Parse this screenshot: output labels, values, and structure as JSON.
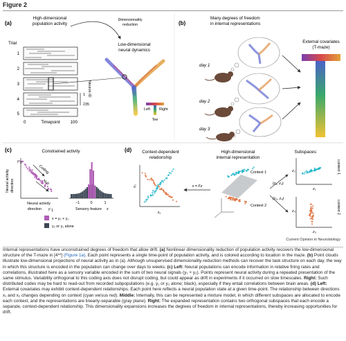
{
  "figure_label": "Figure 2",
  "panel_a": {
    "letter": "(a)",
    "title_line1": "High-dimensional",
    "title_line2": "population activity",
    "trial_label": "Trial",
    "trial_numbers": [
      "1",
      "2",
      "3",
      "4",
      "5"
    ],
    "x_axis_label": "Timepoint",
    "x_tick_0": "0",
    "x_tick_100": "100",
    "neuron_label": "Neuron ID",
    "neuron_tick_1": "1",
    "neuron_tick_235": "235",
    "arrow_label_line1": "Dimensionality",
    "arrow_label_line2": "reduction",
    "lowdim_line1": "Low-dimensional",
    "lowdim_line2": "neural dynamics",
    "tee_left": "Left",
    "tee_right": "Right",
    "tee_label": "Tee"
  },
  "panel_b": {
    "letter": "(b)",
    "title_line1": "Many degrees of freedom",
    "title_line2": "in internal representations",
    "day1": "day 1",
    "day2": "day 2",
    "day3": "day 3",
    "covariates_line1": "External covariates",
    "covariates_line2": "(T-maze)"
  },
  "panel_c": {
    "letter": "(c)",
    "title": "Constrained activity",
    "y_label_line1": "Neural activity",
    "y_label_line2": "direction",
    "y_var": "y",
    "y_sub": "2",
    "x_label_line1": "Neural activity",
    "x_label_line2": "direction",
    "x_var": "y",
    "x_sub": "1",
    "coding": "Coding",
    "null": "Null",
    "hist_x_label": "Sensory feature",
    "hist_x_var": "x",
    "tick_neg1": "−1",
    "tick_0": "0",
    "tick_1": "1",
    "legend_purple": "x = y₂ + y₁",
    "legend_dark": "y₂ or y₁ alone",
    "colors": {
      "purple": "#b05cb5",
      "dark": "#3c4654"
    }
  },
  "panel_d": {
    "letter": "(d)",
    "left_title_line1": "Context-dependent",
    "left_title_line2": "relationship",
    "left_x": "x₁",
    "left_y": "x₂",
    "mid_title_line1": "High-dimensional",
    "mid_title_line2": "internal representation",
    "context1": "Context 1",
    "context2": "Context 2",
    "map_eq": "x = Fz",
    "right_title": "Subspaces:",
    "pair1": "(z₁, z₂)",
    "pair2": "(z₃, z₄)",
    "z1": "z₁",
    "z2": "z₂",
    "z3": "z₃",
    "z4": "z₄",
    "ctx1_vertical": "context 1",
    "ctx2_vertical": "context 2",
    "colors": {
      "cyan": "#1fb5c9",
      "vermilion": "#e0703f"
    }
  },
  "credit": "Current Opinion in Neurobiology",
  "caption": {
    "p1": "Internal representations have unconstrained degrees of freedom that allow drift. ",
    "p2": "(a)",
    "p3": " Nonlinear dimensionality reduction of population activity recovers the low-dimensional structure of the T-maze in [4**] ",
    "p4": "(Figure 1a)",
    "p5": ". Each point represents a single time-point of population activity, and is colored according to location in the maze. ",
    "p6": "(b)",
    "p7": " Point clouds illustrate low-dimensional projections of neural activity as in (a). Although unsupervised dimensionality-reduction methods can recover the task structure on each day, the way in which this structure is encoded in the population can change over days to weeks. ",
    "p8": "(c) Left:",
    "p9": " Neural populations can encode information in relative firing rates and correlations, illustrated here as a sensory variable encoded in the sum of two neural signals (y₁ + y₂). Points represent neural activity during a repeated presentation of the same stimulus. Variability orthogonal to this coding axis does not disrupt coding, but could appear as drift in experiments if it occurred on slow timescales. ",
    "p10": "Right:",
    "p11": " Such distributed codes may be hard to read-out from recorded subpopulations (e.g. y₁ or y₂ alone; black), especially if they entail correlations between brain areas. ",
    "p12": "(d) Left:",
    "p13": " External covariates may exhibit context-dependent relationships. Each point here reflects a neural population state at a given time-point. The relationship between directions x₁ and x₂ changes depending on context (cyan versus red). ",
    "p14": "Middle:",
    "p15": " Internally, this can be represented a mixture model, in which different subspaces are allocated to encode each context, and the representations are linearly-separable (gray plane). ",
    "p16": "Right:",
    "p17": " The expanded representation contains two orthogonal subspaces that each encode a separate, context-dependent relationship. This dimensionality expansions increases the degrees of freedom in internal representations, thereby increasing opportunities for drift."
  }
}
